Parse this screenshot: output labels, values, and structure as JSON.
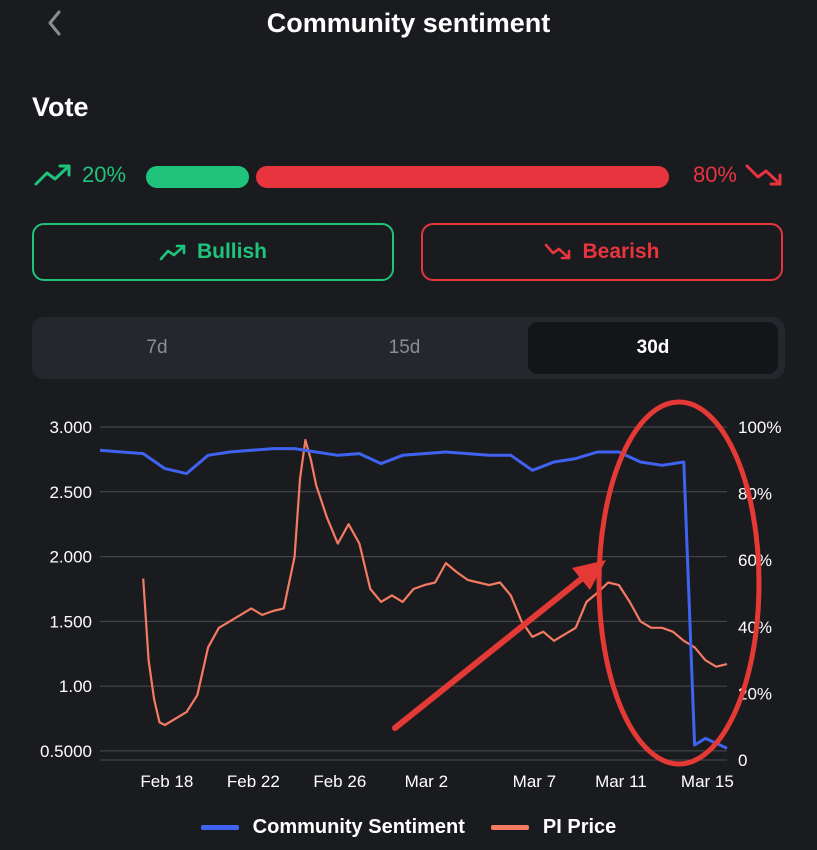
{
  "header": {
    "title": "Community sentiment"
  },
  "vote": {
    "title": "Vote",
    "bullish_pct_label": "20%",
    "bearish_pct_label": "80%",
    "bullish_share": 0.2,
    "bearish_share": 0.8,
    "bullish_label": "Bullish",
    "bearish_label": "Bearish"
  },
  "range_tabs": [
    {
      "label": "7d",
      "active": false
    },
    {
      "label": "15d",
      "active": false
    },
    {
      "label": "30d",
      "active": true
    }
  ],
  "colors": {
    "bullish": "#1fc37b",
    "bearish": "#e8343f",
    "sentiment_line": "#3f63f0",
    "price_line": "#f47a62",
    "annotation": "#e53935"
  },
  "chart_data": {
    "type": "line",
    "x_tick_labels": [
      "Feb 18",
      "Feb 22",
      "Feb 26",
      "Mar 2",
      "Mar 7",
      "Mar 11",
      "Mar 15"
    ],
    "x_tick_positions": [
      "2025-02-18",
      "2025-02-22",
      "2025-02-26",
      "2025-03-02",
      "2025-03-07",
      "2025-03-11",
      "2025-03-15"
    ],
    "xlim": [
      "2025-02-15",
      "2025-03-16"
    ],
    "y_left": {
      "ticks": [
        0.5,
        1.0,
        1.5,
        2.0,
        2.5,
        3.0
      ],
      "tick_labels": [
        "0.5000",
        "1.00",
        "1.500",
        "2.000",
        "2.500",
        "3.000"
      ],
      "lim": [
        0.43,
        3.0
      ]
    },
    "y_right": {
      "ticks": [
        0,
        20,
        40,
        60,
        80,
        100
      ],
      "tick_labels": [
        "0",
        "20%",
        "40%",
        "60%",
        "80%",
        "100%"
      ],
      "lim": [
        0,
        100
      ]
    },
    "grid": true,
    "legend_position": "bottom",
    "series": [
      {
        "name": "Community Sentiment",
        "axis": "right",
        "x": [
          "2025-02-15",
          "2025-02-16",
          "2025-02-17",
          "2025-02-18",
          "2025-02-19",
          "2025-02-20",
          "2025-02-21",
          "2025-02-22",
          "2025-02-23",
          "2025-02-24",
          "2025-02-25",
          "2025-02-26",
          "2025-02-27",
          "2025-02-28",
          "2025-03-01",
          "2025-03-02",
          "2025-03-03",
          "2025-03-04",
          "2025-03-05",
          "2025-03-06",
          "2025-03-07",
          "2025-03-08",
          "2025-03-09",
          "2025-03-10",
          "2025-03-11",
          "2025-03-12",
          "2025-03-13",
          "2025-03-14",
          "2025-03-14T12:00",
          "2025-03-15",
          "2025-03-16"
        ],
        "y": [
          93,
          92.5,
          92,
          87.5,
          86,
          91.5,
          92.5,
          93,
          93.5,
          93.5,
          92.5,
          91.5,
          92,
          89,
          91.5,
          92,
          92.5,
          92,
          91.5,
          91.5,
          87,
          89.5,
          90.5,
          92.5,
          92.5,
          89.5,
          88.5,
          89.5,
          4.5,
          6.5,
          3.5
        ]
      },
      {
        "name": "PI Price",
        "axis": "left",
        "x": [
          "2025-02-17",
          "2025-02-17T06:00",
          "2025-02-17T12:00",
          "2025-02-17T18:00",
          "2025-02-18",
          "2025-02-18T12:00",
          "2025-02-19",
          "2025-02-19T12:00",
          "2025-02-20",
          "2025-02-20T12:00",
          "2025-02-21",
          "2025-02-21T12:00",
          "2025-02-22",
          "2025-02-22T12:00",
          "2025-02-23",
          "2025-02-23T12:00",
          "2025-02-24",
          "2025-02-24T06:00",
          "2025-02-24T12:00",
          "2025-02-24T18:00",
          "2025-02-25",
          "2025-02-25T12:00",
          "2025-02-26",
          "2025-02-26T12:00",
          "2025-02-27",
          "2025-02-27T12:00",
          "2025-02-28",
          "2025-02-28T12:00",
          "2025-03-01",
          "2025-03-01T12:00",
          "2025-03-02",
          "2025-03-02T12:00",
          "2025-03-03",
          "2025-03-03T12:00",
          "2025-03-04",
          "2025-03-04T12:00",
          "2025-03-05",
          "2025-03-05T12:00",
          "2025-03-06",
          "2025-03-06T12:00",
          "2025-03-07",
          "2025-03-07T12:00",
          "2025-03-08",
          "2025-03-08T12:00",
          "2025-03-09",
          "2025-03-09T12:00",
          "2025-03-10",
          "2025-03-10T12:00",
          "2025-03-11",
          "2025-03-11T12:00",
          "2025-03-12",
          "2025-03-12T12:00",
          "2025-03-13",
          "2025-03-13T12:00",
          "2025-03-14",
          "2025-03-14T12:00",
          "2025-03-15",
          "2025-03-15T12:00",
          "2025-03-16"
        ],
        "y": [
          1.83,
          1.2,
          0.9,
          0.72,
          0.7,
          0.75,
          0.8,
          0.93,
          1.3,
          1.45,
          1.5,
          1.55,
          1.6,
          1.55,
          1.58,
          1.6,
          2.0,
          2.6,
          2.9,
          2.75,
          2.55,
          2.3,
          2.1,
          2.25,
          2.1,
          1.75,
          1.65,
          1.7,
          1.65,
          1.75,
          1.78,
          1.8,
          1.95,
          1.88,
          1.82,
          1.8,
          1.78,
          1.8,
          1.7,
          1.5,
          1.38,
          1.42,
          1.35,
          1.4,
          1.45,
          1.65,
          1.72,
          1.8,
          1.78,
          1.65,
          1.5,
          1.45,
          1.45,
          1.42,
          1.35,
          1.3,
          1.2,
          1.15,
          1.17
        ]
      }
    ]
  }
}
